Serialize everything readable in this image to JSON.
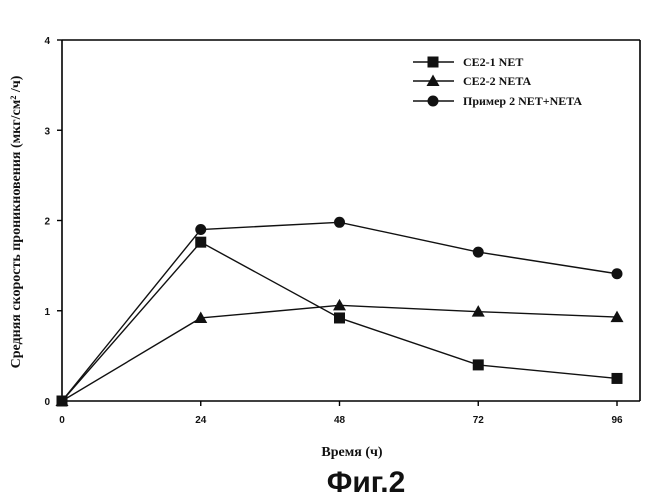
{
  "chart_data": {
    "type": "line",
    "xlabel": "Время (ч)",
    "ylabel": "Средняя скорость проникновения (мкг/см² /ч)",
    "caption": "Фиг.2",
    "x": [
      0,
      24,
      48,
      72,
      96
    ],
    "xticks": [
      "0",
      "24",
      "48",
      "72",
      "96"
    ],
    "yticks": [
      "0",
      "1",
      "2",
      "3",
      "4"
    ],
    "xlim": [
      0,
      96
    ],
    "ylim": [
      0,
      4
    ],
    "grid": false,
    "legend_position": "top-right",
    "series": [
      {
        "name": "CE2-1 NET",
        "marker": "square",
        "values": [
          0,
          1.76,
          0.92,
          0.4,
          0.25
        ]
      },
      {
        "name": "CE2-2 NETA",
        "marker": "triangle",
        "values": [
          0,
          0.92,
          1.06,
          0.99,
          0.93
        ]
      },
      {
        "name": "Пример 2 NET+NETA",
        "marker": "circle",
        "values": [
          0,
          1.9,
          1.98,
          1.65,
          1.41
        ]
      }
    ],
    "colors": {
      "line": "#111111",
      "axis": "#000000"
    }
  }
}
